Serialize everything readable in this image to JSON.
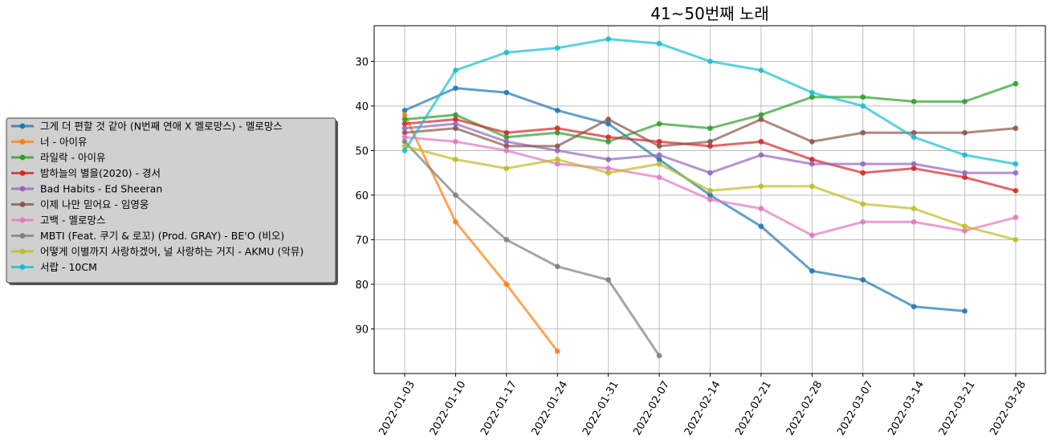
{
  "chart_data": {
    "type": "line",
    "title": "41~50번째 노래",
    "xlabel": "",
    "ylabel": "",
    "y_inverted": true,
    "ylim": [
      100,
      22
    ],
    "yticks": [
      30,
      40,
      50,
      60,
      70,
      80,
      90
    ],
    "grid": true,
    "legend_placement": "center-left",
    "x": [
      "2022-01-03",
      "2022-01-10",
      "2022-01-17",
      "2022-01-24",
      "2022-01-31",
      "2022-02-07",
      "2022-02-14",
      "2022-02-21",
      "2022-02-28",
      "2022-03-07",
      "2022-03-14",
      "2022-03-21",
      "2022-03-28"
    ],
    "series": [
      {
        "name": "그게 더 편할 것 같아 (N번째 연애 X 멜로망스) - 멜로망스",
        "color": "#1f77b4",
        "values": [
          41,
          36,
          37,
          41,
          44,
          52,
          60,
          67,
          77,
          79,
          85,
          86,
          null
        ]
      },
      {
        "name": "너 - 아이유",
        "color": "#ff7f0e",
        "values": [
          42,
          66,
          80,
          95,
          null,
          null,
          null,
          null,
          null,
          null,
          null,
          null,
          null
        ]
      },
      {
        "name": "라일락 - 아이유",
        "color": "#2ca02c",
        "values": [
          43,
          42,
          47,
          46,
          48,
          44,
          45,
          42,
          38,
          38,
          39,
          39,
          35
        ]
      },
      {
        "name": "밤하늘의 별을(2020) - 경서",
        "color": "#d62728",
        "values": [
          44,
          43,
          46,
          45,
          47,
          48,
          49,
          48,
          52,
          55,
          54,
          56,
          59
        ]
      },
      {
        "name": "Bad Habits - Ed Sheeran",
        "color": "#9467bd",
        "values": [
          45,
          44,
          48,
          50,
          52,
          51,
          55,
          51,
          53,
          53,
          53,
          55,
          55
        ]
      },
      {
        "name": "이제 나만 믿어요 - 임영웅",
        "color": "#8c564b",
        "values": [
          46,
          45,
          49,
          49,
          43,
          49,
          48,
          43,
          48,
          46,
          46,
          46,
          45
        ]
      },
      {
        "name": "고백 - 멜로망스",
        "color": "#e377c2",
        "values": [
          47,
          48,
          50,
          53,
          54,
          56,
          61,
          63,
          69,
          66,
          66,
          68,
          65
        ]
      },
      {
        "name": "MBTI (Feat. 쿠기 & 로꼬) (Prod. GRAY) - BE'O (비오)",
        "color": "#7f7f7f",
        "values": [
          48,
          60,
          70,
          76,
          79,
          96,
          null,
          null,
          null,
          null,
          null,
          null,
          null
        ]
      },
      {
        "name": "어떻게 이별까지 사랑하겠어, 널 사랑하는 거지 - AKMU (악뮤)",
        "color": "#bcbd22",
        "values": [
          49,
          52,
          54,
          52,
          55,
          53,
          59,
          58,
          58,
          62,
          63,
          67,
          70
        ]
      },
      {
        "name": "서랍 - 10CM",
        "color": "#17becf",
        "values": [
          50,
          32,
          28,
          27,
          25,
          26,
          30,
          32,
          37,
          40,
          47,
          51,
          53
        ]
      }
    ]
  }
}
